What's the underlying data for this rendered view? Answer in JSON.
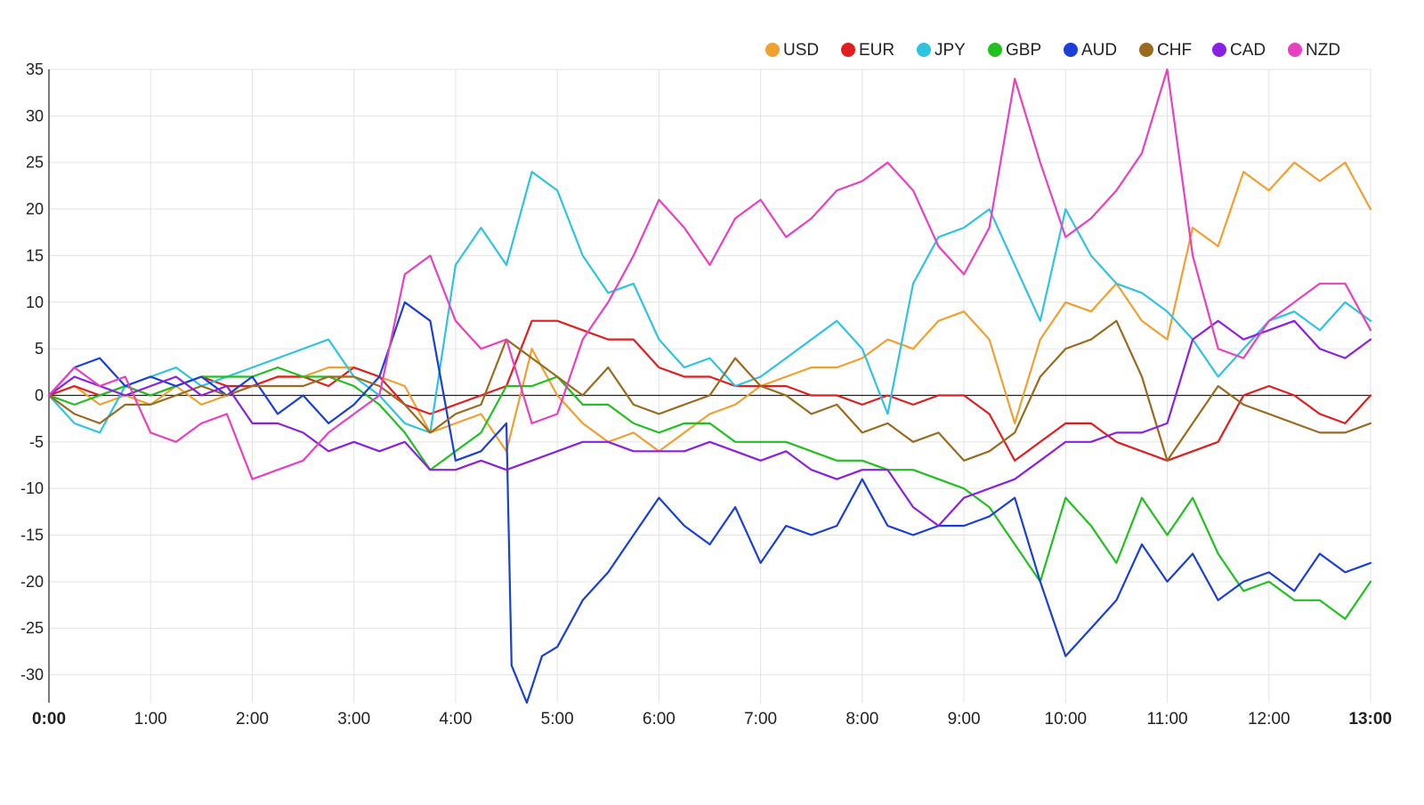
{
  "chart_data": {
    "type": "line",
    "title": "",
    "xlabel": "",
    "ylabel": "",
    "ylim": [
      -33,
      35
    ],
    "xlim": [
      0,
      13
    ],
    "grid": true,
    "legend_position": "top-right",
    "y_ticks": [
      "35",
      "30",
      "25",
      "20",
      "15",
      "10",
      "5",
      "0",
      "-5",
      "-10",
      "-15",
      "-20",
      "-25",
      "-30"
    ],
    "y_tick_values": [
      35,
      30,
      25,
      20,
      15,
      10,
      5,
      0,
      -5,
      -10,
      -15,
      -20,
      -25,
      -30
    ],
    "x_ticks": [
      "0:00",
      "1:00",
      "2:00",
      "3:00",
      "4:00",
      "5:00",
      "6:00",
      "7:00",
      "8:00",
      "9:00",
      "10:00",
      "11:00",
      "12:00",
      "13:00"
    ],
    "x_tick_values": [
      0,
      1,
      2,
      3,
      4,
      5,
      6,
      7,
      8,
      9,
      10,
      11,
      12,
      13
    ],
    "series": [
      {
        "name": "USD",
        "color": "#f0a030",
        "x": [
          0,
          0.25,
          0.5,
          0.75,
          1,
          1.25,
          1.5,
          1.75,
          2,
          2.25,
          2.5,
          2.75,
          3,
          3.25,
          3.5,
          3.75,
          4,
          4.25,
          4.5,
          4.75,
          5,
          5.25,
          5.5,
          5.75,
          6,
          6.25,
          6.5,
          6.75,
          7,
          7.25,
          7.5,
          7.75,
          8,
          8.25,
          8.5,
          8.75,
          9,
          9.25,
          9.5,
          9.75,
          10,
          10.25,
          10.5,
          10.75,
          11,
          11.25,
          11.5,
          11.75,
          12,
          12.25,
          12.5,
          12.75,
          13
        ],
        "values": [
          0,
          1,
          -1,
          0,
          -1,
          1,
          -1,
          0,
          1,
          2,
          2,
          3,
          3,
          2,
          1,
          -4,
          -3,
          -2,
          -6,
          5,
          0,
          -3,
          -5,
          -4,
          -6,
          -4,
          -2,
          -1,
          1,
          2,
          3,
          3,
          4,
          6,
          5,
          8,
          9,
          6,
          -3,
          6,
          10,
          9,
          12,
          8,
          6,
          18,
          16,
          24,
          22,
          25,
          23,
          25,
          20
        ]
      },
      {
        "name": "EUR",
        "color": "#e01e1e",
        "x": [
          0,
          0.25,
          0.5,
          0.75,
          1,
          1.25,
          1.5,
          1.75,
          2,
          2.25,
          2.5,
          2.75,
          3,
          3.25,
          3.5,
          3.75,
          4,
          4.25,
          4.5,
          4.75,
          5,
          5.25,
          5.5,
          5.75,
          6,
          6.25,
          6.5,
          6.75,
          7,
          7.25,
          7.5,
          7.75,
          8,
          8.25,
          8.5,
          8.75,
          9,
          9.25,
          9.5,
          9.75,
          10,
          10.25,
          10.5,
          10.75,
          11,
          11.25,
          11.5,
          11.75,
          12,
          12.25,
          12.5,
          12.75,
          13
        ],
        "values": [
          0,
          1,
          0,
          1,
          0,
          1,
          2,
          1,
          1,
          2,
          2,
          1,
          3,
          2,
          -1,
          -2,
          -1,
          0,
          1,
          8,
          8,
          7,
          6,
          6,
          3,
          2,
          2,
          1,
          1,
          1,
          0,
          0,
          -1,
          0,
          -1,
          0,
          0,
          -2,
          -7,
          -5,
          -3,
          -3,
          -5,
          -6,
          -7,
          -6,
          -5,
          0,
          1,
          0,
          -2,
          -3,
          0
        ]
      },
      {
        "name": "JPY",
        "color": "#2ec4e0",
        "x": [
          0,
          0.25,
          0.5,
          0.75,
          1,
          1.25,
          1.5,
          1.75,
          2,
          2.25,
          2.5,
          2.75,
          3,
          3.25,
          3.5,
          3.75,
          4,
          4.25,
          4.5,
          4.75,
          5,
          5.25,
          5.5,
          5.75,
          6,
          6.25,
          6.5,
          6.75,
          7,
          7.25,
          7.5,
          7.75,
          8,
          8.25,
          8.5,
          8.75,
          9,
          9.25,
          9.5,
          9.75,
          10,
          10.25,
          10.5,
          10.75,
          11,
          11.25,
          11.5,
          11.75,
          12,
          12.25,
          12.5,
          12.75,
          13
        ],
        "values": [
          0,
          -3,
          -4,
          1,
          2,
          3,
          1,
          2,
          3,
          4,
          5,
          6,
          2,
          0,
          -3,
          -4,
          14,
          18,
          14,
          24,
          22,
          15,
          11,
          12,
          6,
          3,
          4,
          1,
          2,
          4,
          6,
          8,
          5,
          -2,
          12,
          17,
          18,
          20,
          14,
          8,
          20,
          15,
          12,
          11,
          9,
          6,
          2,
          5,
          8,
          9,
          7,
          10,
          8
        ]
      },
      {
        "name": "GBP",
        "color": "#20c020",
        "x": [
          0,
          0.25,
          0.5,
          0.75,
          1,
          1.25,
          1.5,
          1.75,
          2,
          2.25,
          2.5,
          2.75,
          3,
          3.25,
          3.5,
          3.75,
          4,
          4.25,
          4.5,
          4.75,
          5,
          5.25,
          5.5,
          5.75,
          6,
          6.25,
          6.5,
          6.75,
          7,
          7.25,
          7.5,
          7.75,
          8,
          8.25,
          8.5,
          8.75,
          9,
          9.25,
          9.5,
          9.75,
          10,
          10.25,
          10.5,
          10.75,
          11,
          11.25,
          11.5,
          11.75,
          12,
          12.25,
          12.5,
          12.75,
          13
        ],
        "values": [
          0,
          -1,
          0,
          1,
          0,
          1,
          2,
          2,
          2,
          3,
          2,
          2,
          1,
          -1,
          -4,
          -8,
          -6,
          -4,
          1,
          1,
          2,
          -1,
          -1,
          -3,
          -4,
          -3,
          -3,
          -5,
          -5,
          -5,
          -6,
          -7,
          -7,
          -8,
          -8,
          -9,
          -10,
          -12,
          -16,
          -20,
          -11,
          -14,
          -18,
          -11,
          -15,
          -11,
          -17,
          -21,
          -20,
          -22,
          -22,
          -24,
          -20
        ]
      },
      {
        "name": "AUD",
        "color": "#1a3ed8",
        "x": [
          0,
          0.25,
          0.5,
          0.75,
          1,
          1.25,
          1.5,
          1.75,
          2,
          2.25,
          2.5,
          2.75,
          3,
          3.25,
          3.5,
          3.75,
          4,
          4.25,
          4.5,
          4.55,
          4.7,
          4.85,
          5,
          5.25,
          5.5,
          5.75,
          6,
          6.25,
          6.5,
          6.75,
          7,
          7.25,
          7.5,
          7.75,
          8,
          8.25,
          8.5,
          8.75,
          9,
          9.25,
          9.5,
          9.75,
          10,
          10.25,
          10.5,
          10.75,
          11,
          11.25,
          11.5,
          11.75,
          12,
          12.25,
          12.5,
          12.75,
          13
        ],
        "values": [
          0,
          3,
          4,
          1,
          2,
          1,
          2,
          0,
          2,
          -2,
          0,
          -3,
          -1,
          2,
          10,
          8,
          -7,
          -6,
          -3,
          -29,
          -33,
          -28,
          -27,
          -22,
          -19,
          -15,
          -11,
          -14,
          -16,
          -12,
          -18,
          -14,
          -15,
          -14,
          -9,
          -14,
          -15,
          -14,
          -14,
          -13,
          -11,
          -20,
          -28,
          -25,
          -22,
          -16,
          -20,
          -17,
          -22,
          -20,
          -19,
          -21,
          -17,
          -19,
          -18
        ]
      },
      {
        "name": "CHF",
        "color": "#9a6a1e",
        "x": [
          0,
          0.25,
          0.5,
          0.75,
          1,
          1.25,
          1.5,
          1.75,
          2,
          2.25,
          2.5,
          2.75,
          3,
          3.25,
          3.5,
          3.75,
          4,
          4.25,
          4.5,
          4.75,
          5,
          5.25,
          5.5,
          5.75,
          6,
          6.25,
          6.5,
          6.75,
          7,
          7.25,
          7.5,
          7.75,
          8,
          8.25,
          8.5,
          8.75,
          9,
          9.25,
          9.5,
          9.75,
          10,
          10.25,
          10.5,
          10.75,
          11,
          11.25,
          11.5,
          11.75,
          12,
          12.25,
          12.5,
          12.75,
          13
        ],
        "values": [
          0,
          -2,
          -3,
          -1,
          -1,
          0,
          1,
          0,
          1,
          1,
          1,
          2,
          2,
          1,
          -1,
          -4,
          -2,
          -1,
          6,
          4,
          2,
          0,
          3,
          -1,
          -2,
          -1,
          0,
          4,
          1,
          0,
          -2,
          -1,
          -4,
          -3,
          -5,
          -4,
          -7,
          -6,
          -4,
          2,
          5,
          6,
          8,
          2,
          -7,
          -3,
          1,
          -1,
          -2,
          -3,
          -4,
          -4,
          -3
        ]
      },
      {
        "name": "CAD",
        "color": "#8a20e0",
        "x": [
          0,
          0.25,
          0.5,
          0.75,
          1,
          1.25,
          1.5,
          1.75,
          2,
          2.25,
          2.5,
          2.75,
          3,
          3.25,
          3.5,
          3.75,
          4,
          4.25,
          4.5,
          4.75,
          5,
          5.25,
          5.5,
          5.75,
          6,
          6.25,
          6.5,
          6.75,
          7,
          7.25,
          7.5,
          7.75,
          8,
          8.25,
          8.5,
          8.75,
          9,
          9.25,
          9.5,
          9.75,
          10,
          10.25,
          10.5,
          10.75,
          11,
          11.25,
          11.5,
          11.75,
          12,
          12.25,
          12.5,
          12.75,
          13
        ],
        "values": [
          0,
          2,
          1,
          0,
          1,
          2,
          0,
          1,
          -3,
          -3,
          -4,
          -6,
          -5,
          -6,
          -5,
          -8,
          -8,
          -7,
          -8,
          -7,
          -6,
          -5,
          -5,
          -6,
          -6,
          -6,
          -5,
          -6,
          -7,
          -6,
          -8,
          -9,
          -8,
          -8,
          -12,
          -14,
          -11,
          -10,
          -9,
          -7,
          -5,
          -5,
          -4,
          -4,
          -3,
          6,
          8,
          6,
          7,
          8,
          5,
          4,
          6
        ]
      },
      {
        "name": "NZD",
        "color": "#e840c0",
        "x": [
          0,
          0.25,
          0.5,
          0.75,
          1,
          1.25,
          1.5,
          1.75,
          2,
          2.25,
          2.5,
          2.75,
          3,
          3.25,
          3.5,
          3.75,
          4,
          4.25,
          4.5,
          4.75,
          5,
          5.25,
          5.5,
          5.75,
          6,
          6.25,
          6.5,
          6.75,
          7,
          7.25,
          7.5,
          7.75,
          8,
          8.25,
          8.5,
          8.75,
          9,
          9.25,
          9.5,
          9.75,
          10,
          10.25,
          10.5,
          10.75,
          11,
          11.25,
          11.5,
          11.75,
          12,
          12.25,
          12.5,
          12.75,
          13
        ],
        "values": [
          0,
          3,
          1,
          2,
          -4,
          -5,
          -3,
          -2,
          -9,
          -8,
          -7,
          -4,
          -2,
          0,
          13,
          15,
          8,
          5,
          6,
          -3,
          -2,
          6,
          10,
          15,
          21,
          18,
          14,
          19,
          21,
          17,
          19,
          22,
          23,
          25,
          22,
          16,
          13,
          18,
          34,
          25,
          17,
          19,
          22,
          26,
          35,
          15,
          5,
          4,
          8,
          10,
          12,
          12,
          7
        ]
      }
    ]
  }
}
